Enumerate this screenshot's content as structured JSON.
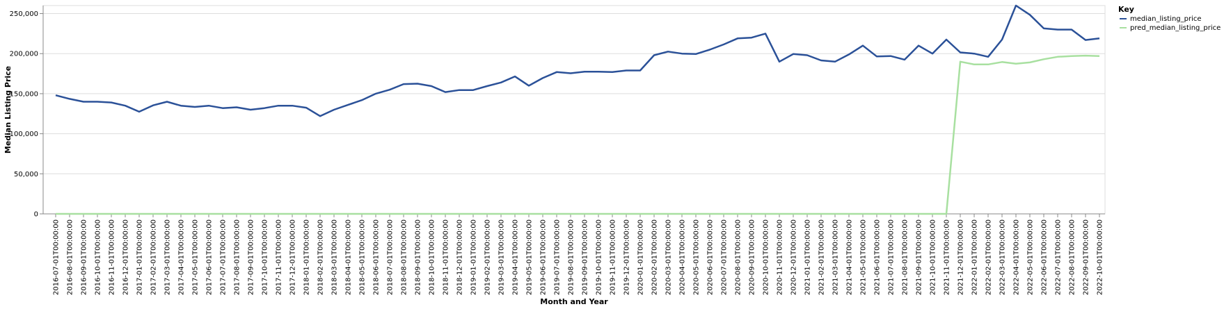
{
  "chart_data": {
    "type": "line",
    "xlabel": "Month and Year",
    "ylabel": "Median Listing Price",
    "ylim": [
      0,
      260000
    ],
    "y_ticks": [
      0,
      50000,
      100000,
      150000,
      200000,
      250000
    ],
    "y_tick_labels": [
      "0",
      "50,000",
      "100,000",
      "150,000",
      "200,000",
      "250,000"
    ],
    "grid": true,
    "legend_title": "Key",
    "legend_position": "right",
    "categories": [
      "2016-07-01T00:00:00",
      "2016-08-01T00:00:00",
      "2016-09-01T00:00:00",
      "2016-10-01T00:00:00",
      "2016-11-01T00:00:00",
      "2016-12-01T00:00:00",
      "2017-01-01T00:00:00",
      "2017-02-01T00:00:00",
      "2017-03-01T00:00:00",
      "2017-04-01T00:00:00",
      "2017-05-01T00:00:00",
      "2017-06-01T00:00:00",
      "2017-07-01T00:00:00",
      "2017-08-01T00:00:00",
      "2017-09-01T00:00:00",
      "2017-10-01T00:00:00",
      "2017-11-01T00:00:00",
      "2017-12-01T00:00:00",
      "2018-01-01T00:00:00",
      "2018-02-01T00:00:00",
      "2018-03-01T00:00:00",
      "2018-04-01T00:00:00",
      "2018-05-01T00:00:00",
      "2018-06-01T00:00:00",
      "2018-07-01T00:00:00",
      "2018-08-01T00:00:00",
      "2018-09-01T00:00:00",
      "2018-10-01T00:00:00",
      "2018-11-01T00:00:00",
      "2018-12-01T00:00:00",
      "2019-01-01T00:00:00",
      "2019-02-01T00:00:00",
      "2019-03-01T00:00:00",
      "2019-04-01T00:00:00",
      "2019-05-01T00:00:00",
      "2019-06-01T00:00:00",
      "2019-07-01T00:00:00",
      "2019-08-01T00:00:00",
      "2019-09-01T00:00:00",
      "2019-10-01T00:00:00",
      "2019-11-01T00:00:00",
      "2019-12-01T00:00:00",
      "2020-01-01T00:00:00",
      "2020-02-01T00:00:00",
      "2020-03-01T00:00:00",
      "2020-04-01T00:00:00",
      "2020-05-01T00:00:00",
      "2020-06-01T00:00:00",
      "2020-07-01T00:00:00",
      "2020-08-01T00:00:00",
      "2020-09-01T00:00:00",
      "2020-10-01T00:00:00",
      "2020-11-01T00:00:00",
      "2020-12-01T00:00:00",
      "2021-01-01T00:00:00",
      "2021-02-01T00:00:00",
      "2021-03-01T00:00:00",
      "2021-04-01T00:00:00",
      "2021-05-01T00:00:00",
      "2021-06-01T00:00:00",
      "2021-07-01T00:00:00",
      "2021-08-01T00:00:00",
      "2021-09-01T00:00:00",
      "2021-10-01T00:00:00",
      "2021-11-01T00:00:00",
      "2021-12-01T00:00:00",
      "2022-01-01T00:00:00",
      "2022-02-01T00:00:00",
      "2022-03-01T00:00:00",
      "2022-04-01T00:00:00",
      "2022-05-01T00:00:00",
      "2022-06-01T00:00:00",
      "2022-07-01T00:00:00",
      "2022-08-01T00:00:00",
      "2022-09-01T00:00:00",
      "2022-10-01T00:00:00"
    ],
    "series": [
      {
        "name": "median_listing_price",
        "color": "#2b5198",
        "values": [
          148000,
          143500,
          140000,
          140000,
          139000,
          135000,
          127500,
          135500,
          140000,
          135000,
          133500,
          135000,
          132000,
          133000,
          130000,
          132000,
          135000,
          135000,
          132500,
          122000,
          130000,
          136000,
          142000,
          150000,
          155000,
          162000,
          162500,
          159500,
          152000,
          154500,
          154500,
          159500,
          164000,
          171500,
          160000,
          169500,
          177000,
          175500,
          177500,
          177500,
          177000,
          179000,
          179000,
          198000,
          202500,
          200000,
          199500,
          205000,
          211500,
          219000,
          220000,
          225000,
          190000,
          199500,
          198000,
          191500,
          190000,
          199000,
          210000,
          196500,
          197000,
          192500,
          210000,
          200000,
          217500,
          201500,
          200000,
          196000,
          217500,
          260000,
          248500,
          231500,
          230000,
          230000,
          217000,
          219000
        ]
      },
      {
        "name": "pred_median_listing_price",
        "color": "#a8e0a0",
        "values": [
          0,
          0,
          0,
          0,
          0,
          0,
          0,
          0,
          0,
          0,
          0,
          0,
          0,
          0,
          0,
          0,
          0,
          0,
          0,
          0,
          0,
          0,
          0,
          0,
          0,
          0,
          0,
          0,
          0,
          0,
          0,
          0,
          0,
          0,
          0,
          0,
          0,
          0,
          0,
          0,
          0,
          0,
          0,
          0,
          0,
          0,
          0,
          0,
          0,
          0,
          0,
          0,
          0,
          0,
          0,
          0,
          0,
          0,
          0,
          0,
          0,
          0,
          0,
          0,
          0,
          190000,
          186500,
          186500,
          189500,
          187500,
          189000,
          193000,
          196000,
          197000,
          197500,
          197000
        ]
      }
    ]
  }
}
